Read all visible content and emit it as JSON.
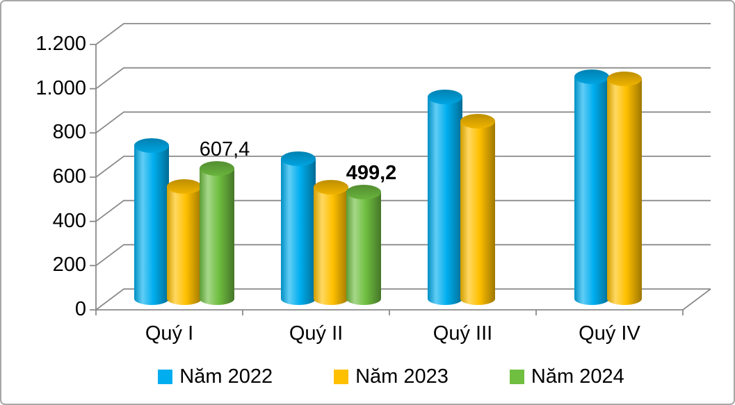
{
  "figure": {
    "background": "#FFFFFF",
    "border_color": "#A7A7A7"
  },
  "chart_data": {
    "type": "bar",
    "style": "3d-cylinder-clustered",
    "title": "",
    "xlabel": "",
    "ylabel": "",
    "categories": [
      "Quý I",
      "Quý II",
      "Quý III",
      "Quý IV"
    ],
    "series": [
      {
        "name": "Năm 2022",
        "color": "#00AEEF",
        "values": [
          710,
          650,
          930,
          1020
        ]
      },
      {
        "name": "Năm 2023",
        "color": "#FFC000",
        "values": [
          525,
          520,
          820,
          1010
        ]
      },
      {
        "name": "Năm 2024",
        "color": "#70BF41",
        "values": [
          607.4,
          499.2,
          null,
          null
        ]
      }
    ],
    "data_labels": [
      {
        "series_index": 2,
        "category_index": 0,
        "text": "607,4",
        "bold": false
      },
      {
        "series_index": 2,
        "category_index": 1,
        "text": "499,2",
        "bold": true
      }
    ],
    "y_axis": {
      "min": 0,
      "max": 1200,
      "step": 200,
      "tick_labels": [
        "0",
        "200",
        "400",
        "600",
        "800",
        "1.000",
        "1.200"
      ]
    },
    "grid": true,
    "gridline_color": "#8A8A8A",
    "legend_position": "bottom"
  }
}
